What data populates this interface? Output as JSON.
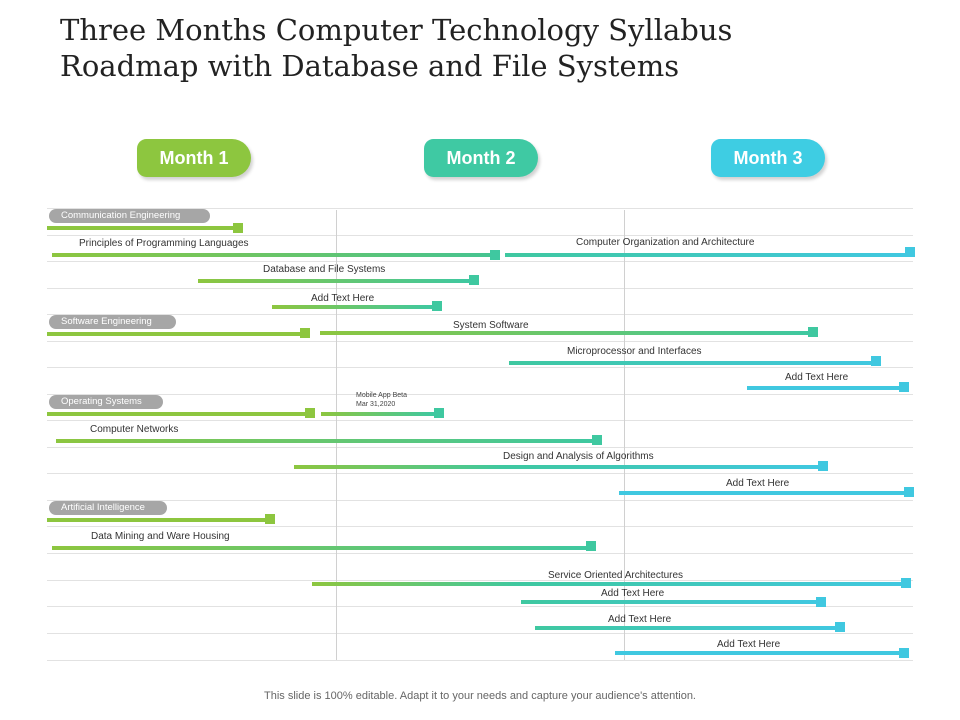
{
  "title_line1": "Three Months Computer Technology Syllabus",
  "title_line2": "Roadmap with Database and File Systems",
  "months": [
    "Month 1",
    "Month 2",
    "Month 3"
  ],
  "colors": {
    "green": "#8dc63f",
    "teal": "#3fc8a0",
    "cyan": "#40c8e0",
    "month1": "#8dc63f",
    "month2": "#3fc9a3",
    "month3": "#3ecde3",
    "pill": "#a6a6a6"
  },
  "categories": [
    "Communication Engineering",
    "Software Engineering",
    "Operating Systems",
    "Artificial Intelligence"
  ],
  "tasks": [
    "Principles of Programming Languages",
    "Computer Organization and Architecture",
    "Database and File Systems",
    "Add Text Here",
    "System Software",
    "Microprocessor and Interfaces",
    "Add Text Here",
    "Computer Networks",
    "Design and Analysis of Algorithms",
    "Add Text Here",
    "Data Mining and Ware Housing",
    "Service Oriented Architectures",
    "Add Text Here",
    "Add Text Here",
    "Add Text Here"
  ],
  "milestone": {
    "line1": "Mobile App Beta",
    "line2": "Mar 31,2020"
  },
  "footer": "This slide is 100% editable. Adapt it to your needs and capture your audience's attention."
}
